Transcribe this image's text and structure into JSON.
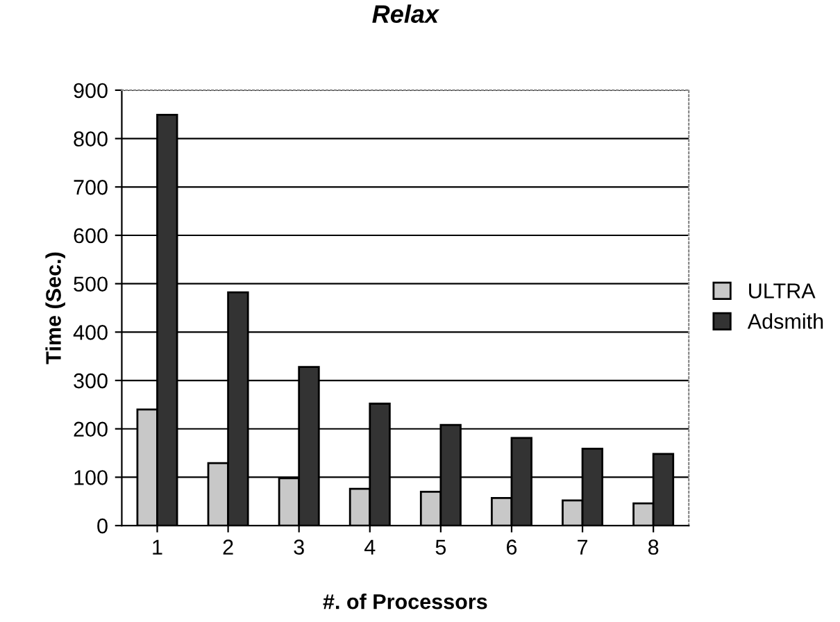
{
  "chart_data": {
    "type": "bar",
    "title": "Relax",
    "xlabel": "#. of Processors",
    "ylabel": "Time (Sec.)",
    "categories": [
      "1",
      "2",
      "3",
      "4",
      "5",
      "6",
      "7",
      "8"
    ],
    "series": [
      {
        "name": "ULTRA",
        "color": "#c8c8c8",
        "values": [
          240,
          129,
          98,
          76,
          70,
          57,
          52,
          46
        ]
      },
      {
        "name": "Adsmith",
        "color": "#333333",
        "values": [
          849,
          482,
          328,
          252,
          208,
          181,
          159,
          148
        ]
      }
    ],
    "ylim": [
      0,
      900
    ],
    "yticks": [
      0,
      100,
      200,
      300,
      400,
      500,
      600,
      700,
      800,
      900
    ],
    "grid": "y",
    "legend": "right"
  }
}
